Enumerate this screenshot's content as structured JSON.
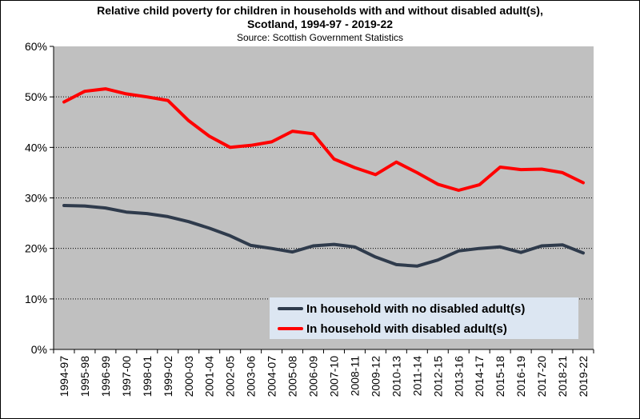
{
  "chart_data": {
    "type": "line",
    "title_line1": "Relative child poverty for children in households with and without disabled adult(s),",
    "title_line2": "Scotland, 1994-97 - 2019-22",
    "subtitle": "Source: Scottish Government Statistics",
    "categories": [
      "1994-97",
      "1995-98",
      "1996-99",
      "1997-00",
      "1998-01",
      "1999-02",
      "2000-03",
      "2001-04",
      "2002-05",
      "2003-06",
      "2004-07",
      "2005-08",
      "2006-09",
      "2007-10",
      "2008-11",
      "2009-12",
      "2010-13",
      "2011-14",
      "2012-15",
      "2013-16",
      "2014-17",
      "2015-18",
      "2016-19",
      "2017-20",
      "2018-21",
      "2019-22"
    ],
    "y_ticks": [
      "0%",
      "10%",
      "20%",
      "30%",
      "40%",
      "50%",
      "60%"
    ],
    "ylim": [
      0,
      60
    ],
    "grid": "dotted horizontal",
    "legend_position": "bottom-right",
    "series": [
      {
        "name": "In household with no disabled adult(s)",
        "color": "#2f3b4c",
        "values": [
          28.5,
          28.4,
          28.0,
          27.2,
          26.9,
          26.3,
          25.3,
          24.0,
          22.5,
          20.6,
          20.0,
          19.3,
          20.5,
          20.8,
          20.3,
          18.3,
          16.8,
          16.5,
          17.7,
          19.5,
          20.0,
          20.3,
          19.2,
          20.5,
          20.7,
          19.1
        ]
      },
      {
        "name": "In household with disabled adult(s)",
        "color": "#ff0000",
        "values": [
          49.0,
          51.1,
          51.6,
          50.6,
          50.0,
          49.3,
          45.3,
          42.2,
          40.0,
          40.4,
          41.1,
          43.2,
          42.7,
          37.7,
          36.0,
          34.6,
          37.1,
          35.0,
          32.7,
          31.5,
          32.6,
          36.1,
          35.6,
          35.7,
          35.0,
          33.0
        ]
      }
    ]
  }
}
